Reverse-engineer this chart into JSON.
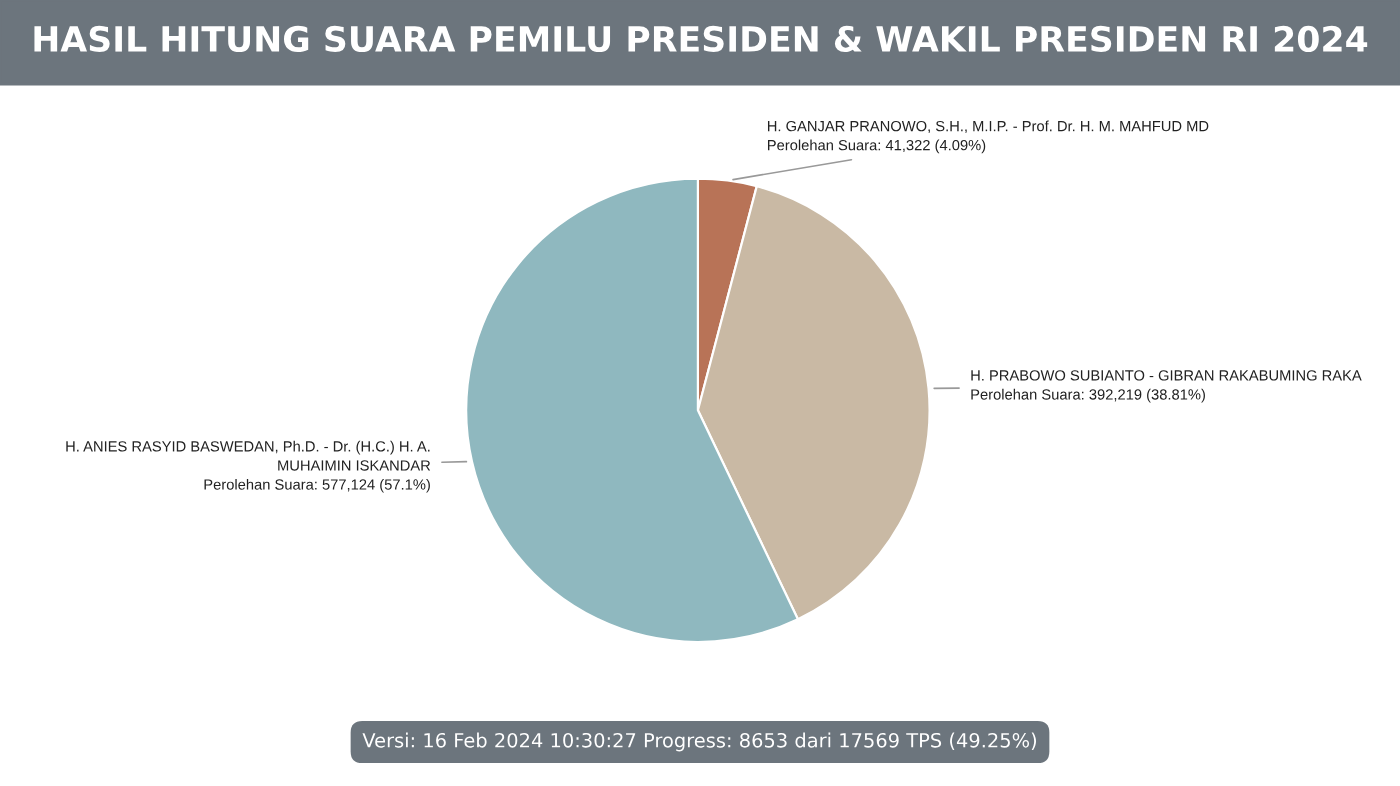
{
  "chart_data": {
    "type": "pie",
    "title": "HASIL HITUNG SUARA PEMILU PRESIDEN & WAKIL PRESIDEN RI 2024",
    "categories": [
      "H. GANJAR PRANOWO, S.H., M.I.P. - Prof. Dr. H. M. MAHFUD MD",
      "H. PRABOWO SUBIANTO - GIBRAN RAKABUMING RAKA",
      "H. ANIES RASYID BASWEDAN, Ph.D. - Dr. (H.C.) H. A. MUHAIMIN ISKANDAR"
    ],
    "values": [
      41322,
      392219,
      577124
    ],
    "colors": [
      "#b87357",
      "#c9b9a4",
      "#8fb8bf"
    ],
    "value_labels": [
      "Perolehan Suara: 41,322 (4.09%)",
      "Perolehan Suara: 392,219 (38.81%)",
      "Perolehan Suara: 577,124 (57.1%)"
    ],
    "annotations": [
      "Versi: 16 Feb 2024 10:30:27 Progress: 8653 dari 17569 TPS (49.25%)"
    ]
  }
}
